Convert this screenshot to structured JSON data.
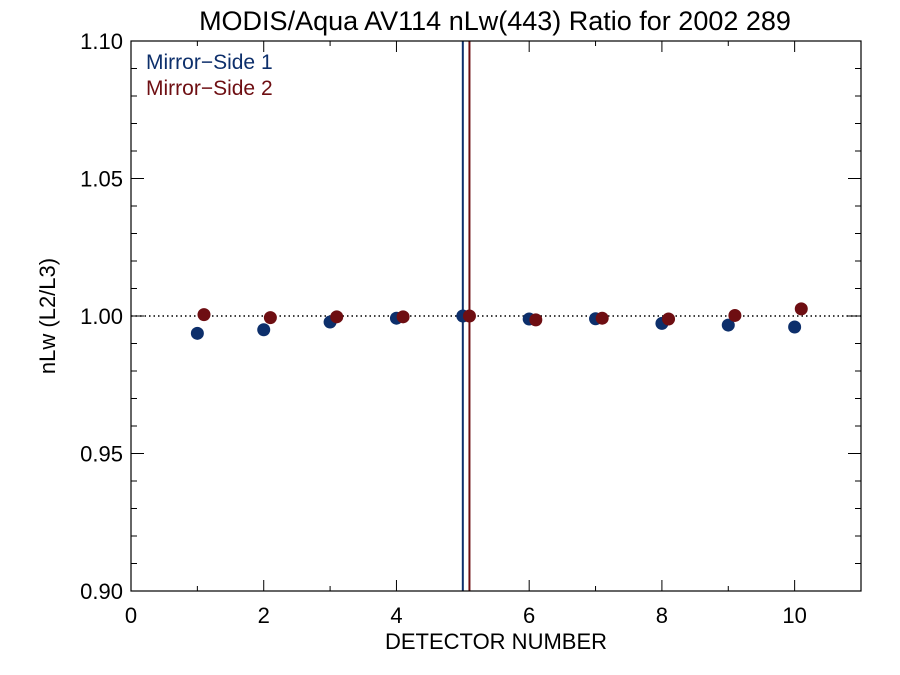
{
  "chart_data": {
    "type": "scatter",
    "title": "MODIS/Aqua AV114 nLw(443) Ratio for 2002 289",
    "xlabel": "DETECTOR NUMBER",
    "ylabel": "nLw (L2/L3)",
    "xlim": [
      0,
      11
    ],
    "ylim": [
      0.9,
      1.1
    ],
    "x_ticks": [
      0,
      2,
      4,
      6,
      8,
      10
    ],
    "x_tick_labels": [
      "0",
      "2",
      "4",
      "6",
      "8",
      "10"
    ],
    "y_ticks": [
      0.9,
      0.95,
      1.0,
      1.05,
      1.1
    ],
    "y_tick_labels": [
      "0.90",
      "0.95",
      "1.00",
      "1.05",
      "1.10"
    ],
    "reference_line_y": 1.0,
    "legend_position": "top-left",
    "series": [
      {
        "name": "Mirror−Side 1",
        "color": "#0d2f6b",
        "x": [
          1,
          2,
          3,
          4,
          5,
          6,
          7,
          8,
          9,
          10
        ],
        "y": [
          0.9937,
          0.995,
          0.9978,
          0.9992,
          1.0,
          0.9989,
          0.999,
          0.9973,
          0.9967,
          0.996
        ],
        "vertical_line_x": 5.0
      },
      {
        "name": "Mirror−Side 2",
        "color": "#6e0e12",
        "x": [
          1.1,
          2.1,
          3.1,
          4.1,
          5.1,
          6.1,
          7.1,
          8.1,
          9.1,
          10.1
        ],
        "y": [
          1.0005,
          0.9994,
          0.9997,
          0.9997,
          1.0,
          0.9986,
          0.9992,
          0.9989,
          1.0002,
          1.0026
        ],
        "vertical_line_x": 5.1
      }
    ]
  }
}
